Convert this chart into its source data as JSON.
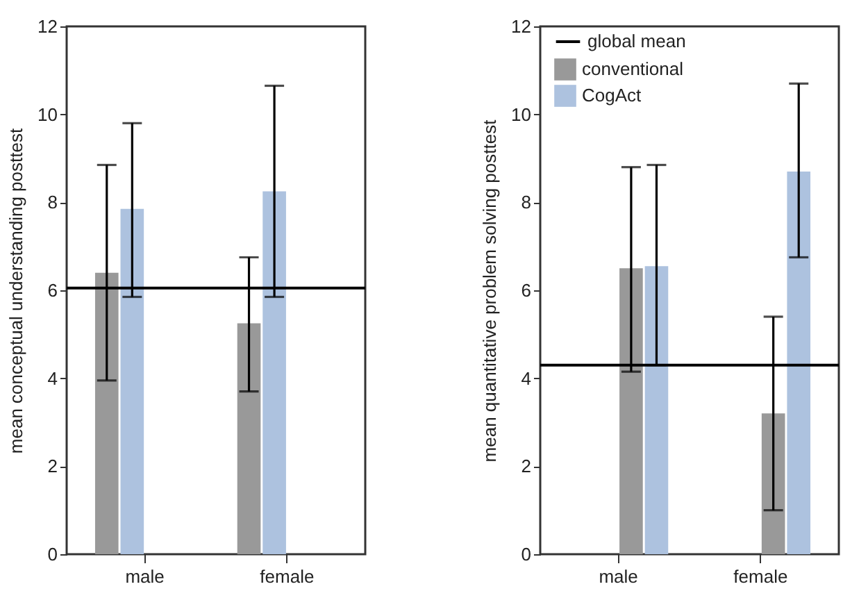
{
  "chart_data": [
    {
      "type": "bar",
      "ylabel": "mean conceptual understanding posttest",
      "categories": [
        "male",
        "female"
      ],
      "ylim": [
        0,
        12
      ],
      "yticks": [
        0,
        2,
        4,
        6,
        8,
        10,
        12
      ],
      "grid": false,
      "legend": false,
      "series": [
        {
          "color": "#999999",
          "values": [
            6.4,
            5.25
          ],
          "errors": [
            [
              3.95,
              8.85
            ],
            [
              3.7,
              6.75
            ]
          ]
        },
        {
          "color": "#adc2df",
          "values": [
            7.85,
            8.25
          ],
          "errors": [
            [
              5.85,
              9.8
            ],
            [
              5.85,
              10.65
            ]
          ]
        }
      ],
      "ref_lines": [
        {
          "axis": "y",
          "value": 6.05,
          "color": "#000000"
        }
      ]
    },
    {
      "type": "bar",
      "ylabel": "mean quantitative problem solving posttest",
      "categories": [
        "male",
        "female"
      ],
      "ylim": [
        0,
        12
      ],
      "yticks": [
        0,
        2,
        4,
        6,
        8,
        10,
        12
      ],
      "grid": false,
      "legend": "top left",
      "series": [
        {
          "name": "conventional",
          "color": "#999999",
          "values": [
            6.5,
            3.2
          ],
          "errors": [
            [
              4.15,
              8.8
            ],
            [
              1.0,
              5.4
            ]
          ]
        },
        {
          "name": "CogAct",
          "color": "#adc2df",
          "values": [
            6.55,
            8.7
          ],
          "errors": [
            [
              4.3,
              8.85
            ],
            [
              6.75,
              10.7
            ]
          ]
        }
      ],
      "ref_lines": [
        {
          "axis": "y",
          "value": 4.3,
          "label": "global mean",
          "color": "#000000"
        }
      ]
    }
  ]
}
